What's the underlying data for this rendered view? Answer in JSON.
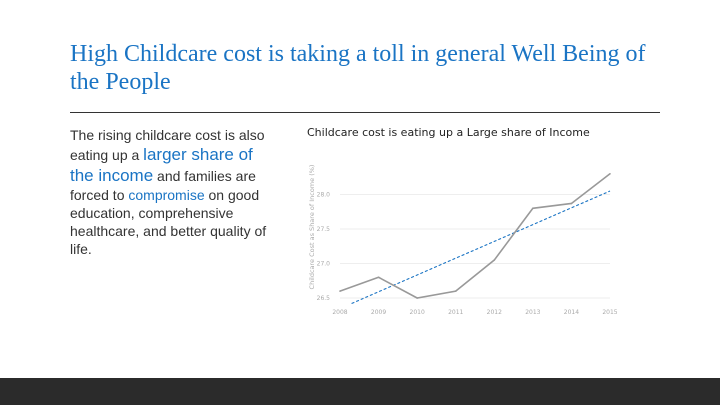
{
  "slide": {
    "title": "High Childcare cost is taking a toll in general Well Being of the People",
    "body": {
      "p1": "The rising childcare cost is also eating up a ",
      "h1": "larger share of the income",
      "p2": " and families are forced to ",
      "h2": "compromise",
      "p3": " on good education, comprehensive healthcare, and better quality of life."
    }
  },
  "colors": {
    "accent": "#1a74c4",
    "series": "#999999",
    "trend": "#1a74c4",
    "footer": "#2b2b2b"
  },
  "chart_data": {
    "type": "line",
    "title": "Childcare cost is eating up a Large share of Income",
    "xlabel": "",
    "ylabel": "Childcare Cost as Share of Income (%)",
    "x": [
      "2008",
      "2009",
      "2010",
      "2011",
      "2012",
      "2013",
      "2014",
      "2015"
    ],
    "series": [
      {
        "values": [
          26.6,
          26.8,
          26.5,
          26.6,
          27.05,
          27.8,
          27.87,
          28.3
        ]
      }
    ],
    "trendline": {
      "style": "dashed",
      "start": [
        2008.3,
        26.42
      ],
      "end": [
        2015,
        28.05
      ]
    },
    "yticks": [
      "26.5",
      "27.0",
      "27.5",
      "28.0"
    ],
    "ylim": [
      26.5,
      28.5
    ],
    "grid": true,
    "legend": "none"
  }
}
